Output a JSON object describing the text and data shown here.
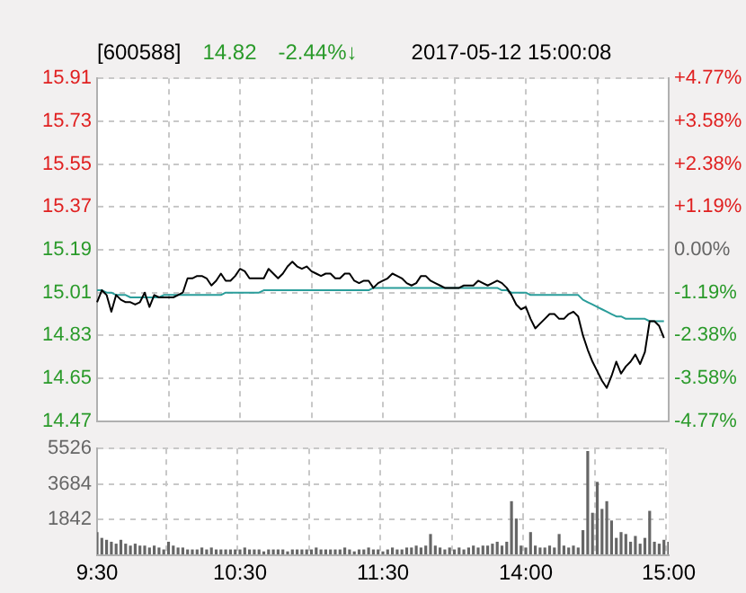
{
  "chart_data": [
    {
      "type": "line",
      "title": "[600588]",
      "annotations": [
        "14.82",
        "-2.44%↓",
        "2017-05-12 15:00:08"
      ],
      "categories": [
        null,
        null,
        null,
        null,
        null,
        null,
        null,
        null,
        null,
        null,
        null,
        null,
        null,
        null,
        null,
        null,
        null,
        null,
        null,
        null,
        null,
        null,
        null,
        null,
        null,
        null,
        null,
        null,
        null,
        null,
        null,
        null,
        null,
        null,
        null,
        null,
        null,
        null,
        null,
        null,
        null,
        null,
        null,
        null,
        null,
        null,
        null,
        null,
        null,
        null,
        null,
        null,
        null,
        null,
        null,
        null,
        null,
        null,
        null,
        null,
        null,
        null,
        null,
        null,
        null,
        null,
        null,
        null,
        null,
        null,
        null,
        null,
        null,
        null,
        null,
        null,
        null,
        null,
        null,
        null,
        null,
        null,
        null,
        null,
        null,
        null,
        null,
        null,
        null,
        null,
        null,
        null,
        null,
        null,
        null,
        null,
        null,
        null,
        null,
        null,
        null,
        null,
        null,
        null,
        null,
        null,
        null,
        null,
        null,
        null,
        null,
        null,
        null,
        null,
        null,
        null,
        null,
        null,
        null,
        null,
        null
      ],
      "ylim": [
        14.47,
        15.91
      ],
      "yticks": [
        14.47,
        14.65,
        14.83,
        15.01,
        15.19,
        15.37,
        15.55,
        15.73,
        15.91
      ],
      "y2lim": [
        -4.77,
        4.77
      ],
      "y2ticks": [
        {
          "value": -4.77,
          "label": "-4.77%"
        },
        {
          "value": -3.58,
          "label": "-3.58%"
        },
        {
          "value": -2.38,
          "label": "-2.38%"
        },
        {
          "value": -1.19,
          "label": "-1.19%"
        },
        {
          "value": 0,
          "label": "0.00%"
        },
        {
          "value": 1.19,
          "label": "+1.19%"
        },
        {
          "value": 2.38,
          "label": "+2.38%"
        },
        {
          "value": 3.58,
          "label": "+3.58%"
        },
        {
          "value": 4.77,
          "label": "+4.77%"
        }
      ],
      "grid": true,
      "legend": false,
      "marker": "none",
      "series": [
        {
          "color": "#000000",
          "values": [
            14.97,
            15.02,
            15.0,
            14.93,
            15.0,
            14.98,
            14.97,
            14.97,
            14.96,
            14.97,
            15.01,
            14.95,
            15.0,
            14.99,
            14.99,
            14.99,
            14.99,
            15.0,
            15.01,
            15.07,
            15.07,
            15.08,
            15.08,
            15.07,
            15.04,
            15.06,
            15.09,
            15.06,
            15.06,
            15.08,
            15.11,
            15.1,
            15.07,
            15.07,
            15.07,
            15.07,
            15.11,
            15.09,
            15.07,
            15.09,
            15.12,
            15.14,
            15.12,
            15.11,
            15.12,
            15.1,
            15.09,
            15.08,
            15.09,
            15.09,
            15.07,
            15.07,
            15.09,
            15.09,
            15.06,
            15.05,
            15.06,
            15.06,
            15.03,
            15.05,
            15.06,
            15.07,
            15.09,
            15.08,
            15.07,
            15.05,
            15.04,
            15.05,
            15.08,
            15.08,
            15.06,
            15.05,
            15.04,
            15.03,
            15.03,
            15.03,
            15.03,
            15.04,
            15.04,
            15.04,
            15.06,
            15.05,
            15.04,
            15.05,
            15.06,
            15.05,
            15.03,
            15.0,
            14.96,
            14.94,
            14.95,
            14.9,
            14.86,
            14.88,
            14.9,
            14.92,
            14.92,
            14.9,
            14.9,
            14.92,
            14.93,
            14.91,
            14.83,
            14.77,
            14.72,
            14.68,
            14.64,
            14.61,
            14.66,
            14.72,
            14.67,
            14.7,
            14.72,
            14.75,
            14.71,
            14.76,
            14.89,
            14.89,
            14.87,
            14.82,
            null
          ]
        },
        {
          "color": "#2a9d9a",
          "values": [
            15.02,
            15.02,
            15.01,
            15.01,
            15.0,
            15.0,
            15.0,
            14.99,
            14.99,
            14.99,
            14.99,
            14.99,
            14.99,
            14.99,
            15.0,
            15.0,
            15.0,
            15.0,
            15.0,
            15.0,
            15.0,
            15.0,
            15.0,
            15.0,
            15.0,
            15.0,
            15.0,
            15.01,
            15.01,
            15.01,
            15.01,
            15.01,
            15.01,
            15.01,
            15.01,
            15.02,
            15.02,
            15.02,
            15.02,
            15.02,
            15.02,
            15.02,
            15.02,
            15.02,
            15.02,
            15.02,
            15.02,
            15.02,
            15.02,
            15.02,
            15.02,
            15.02,
            15.02,
            15.02,
            15.02,
            15.02,
            15.02,
            15.02,
            15.03,
            15.03,
            15.03,
            15.03,
            15.03,
            15.03,
            15.03,
            15.03,
            15.03,
            15.03,
            15.03,
            15.03,
            15.03,
            15.03,
            15.03,
            15.03,
            15.03,
            15.03,
            15.03,
            15.03,
            15.03,
            15.03,
            15.03,
            15.03,
            15.03,
            15.03,
            15.03,
            15.02,
            15.02,
            15.01,
            15.01,
            15.01,
            15.01,
            15.0,
            15.0,
            15.0,
            15.0,
            15.0,
            15.0,
            15.0,
            15.0,
            15.0,
            15.0,
            15.0,
            14.98,
            14.97,
            14.96,
            14.95,
            14.94,
            14.93,
            14.92,
            14.91,
            14.91,
            14.9,
            14.9,
            14.9,
            14.9,
            14.9,
            14.89,
            14.89,
            14.89,
            14.89,
            null
          ]
        }
      ]
    },
    {
      "type": "bar",
      "categories": [
        "9:30",
        null,
        null,
        null,
        null,
        null,
        null,
        null,
        null,
        null,
        null,
        null,
        null,
        null,
        null,
        null,
        null,
        null,
        null,
        null,
        null,
        null,
        null,
        null,
        null,
        null,
        null,
        null,
        null,
        null,
        "10:30",
        null,
        null,
        null,
        null,
        null,
        null,
        null,
        null,
        null,
        null,
        null,
        null,
        null,
        null,
        null,
        null,
        null,
        null,
        null,
        null,
        null,
        null,
        null,
        null,
        null,
        null,
        null,
        null,
        null,
        "11:30",
        null,
        null,
        null,
        null,
        null,
        null,
        null,
        null,
        null,
        null,
        null,
        null,
        null,
        null,
        null,
        null,
        null,
        null,
        null,
        null,
        null,
        null,
        null,
        null,
        null,
        null,
        null,
        null,
        null,
        "14:00",
        null,
        null,
        null,
        null,
        null,
        null,
        null,
        null,
        null,
        null,
        null,
        null,
        null,
        null,
        null,
        null,
        null,
        null,
        null,
        null,
        null,
        null,
        null,
        null,
        null,
        null,
        null,
        null,
        null,
        "15:00"
      ],
      "ylim": [
        0,
        5526
      ],
      "yticks": [
        {
          "value": 0,
          "label": null
        },
        1842,
        3684,
        5526
      ],
      "grid": true,
      "legend": false,
      "series": [
        {
          "color": "#666666",
          "values": [
            1200,
            900,
            800,
            700,
            600,
            800,
            600,
            500,
            600,
            500,
            500,
            400,
            500,
            400,
            300,
            700,
            500,
            400,
            400,
            300,
            300,
            300,
            400,
            300,
            400,
            300,
            300,
            300,
            300,
            300,
            300,
            400,
            300,
            300,
            300,
            200,
            300,
            300,
            300,
            300,
            200,
            300,
            300,
            300,
            300,
            300,
            400,
            300,
            300,
            300,
            300,
            300,
            400,
            300,
            200,
            300,
            300,
            400,
            300,
            300,
            200,
            300,
            400,
            300,
            300,
            400,
            400,
            500,
            400,
            500,
            1100,
            500,
            400,
            300,
            400,
            300,
            400,
            300,
            400,
            500,
            400,
            500,
            500,
            600,
            700,
            500,
            700,
            2800,
            1900,
            500,
            400,
            1200,
            500,
            400,
            400,
            500,
            400,
            1100,
            500,
            400,
            500,
            400,
            1300,
            5400,
            2200,
            3800,
            2400,
            2800,
            1800,
            900,
            1200,
            1100,
            700,
            1000,
            600,
            900,
            2300,
            700,
            600,
            800,
            700
          ]
        }
      ]
    }
  ]
}
